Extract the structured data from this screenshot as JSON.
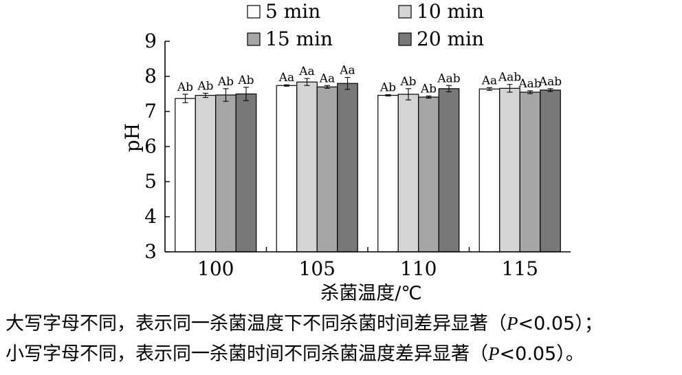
{
  "chart_data": {
    "type": "bar",
    "categories": [
      "100",
      "105",
      "110",
      "115"
    ],
    "xlabel": "杀菌温度/℃",
    "ylabel": "pH",
    "ylim": [
      3,
      9
    ],
    "yticks": [
      3,
      4,
      5,
      6,
      7,
      8,
      9
    ],
    "grid": false,
    "legend_position": "top",
    "series": [
      {
        "name": "5 min",
        "color": "#ffffff",
        "values": [
          7.37,
          7.74,
          7.46,
          7.64
        ],
        "errors": [
          0.12,
          0.02,
          0.02,
          0.04
        ],
        "labels": [
          "Ab",
          "Aa",
          "Ab",
          "Aa"
        ]
      },
      {
        "name": "10 min",
        "color": "#d4d4d4",
        "values": [
          7.46,
          7.84,
          7.49,
          7.66
        ],
        "errors": [
          0.06,
          0.1,
          0.16,
          0.11
        ],
        "labels": [
          "Ab",
          "Aa",
          "Ab",
          "Aab"
        ]
      },
      {
        "name": "15 min",
        "color": "#a6a6a6",
        "values": [
          7.47,
          7.7,
          7.41,
          7.55
        ],
        "errors": [
          0.18,
          0.04,
          0.03,
          0.04
        ],
        "labels": [
          "Ab",
          "Aa",
          "Ab",
          "Aab"
        ]
      },
      {
        "name": "20 min",
        "color": "#787878",
        "values": [
          7.5,
          7.8,
          7.65,
          7.61
        ],
        "errors": [
          0.19,
          0.17,
          0.09,
          0.04
        ],
        "labels": [
          "Ab",
          "Aa",
          "Aab",
          "Aab"
        ]
      }
    ]
  },
  "notes": {
    "line1_a": "大写字母不同，表示同一杀菌温度下不同杀菌时间差异显著（",
    "line1_p": "P",
    "line1_b": "<0.05）；",
    "line2_a": "小写字母不同，表示同一杀菌时间不同杀菌温度差异显著（",
    "line2_p": "P",
    "line2_b": "<0.05）。"
  }
}
